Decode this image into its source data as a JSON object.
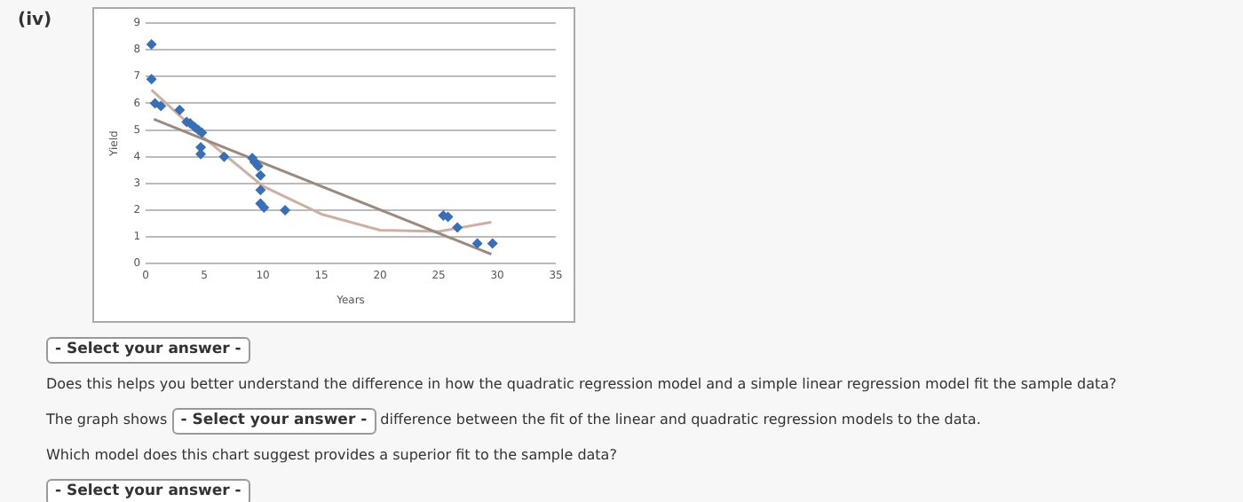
{
  "chart_data": {
    "type": "scatter",
    "xlabel": "Years",
    "ylabel": "Yield",
    "xlim": [
      0,
      35
    ],
    "xticks": [
      0,
      5,
      10,
      15,
      20,
      25,
      30,
      35
    ],
    "ylim": [
      0,
      9
    ],
    "yticks": [
      0,
      1,
      2,
      3,
      4,
      5,
      6,
      7,
      8,
      9
    ],
    "grid": "y",
    "marker": "diamond",
    "series": [
      {
        "type": "scatter",
        "color": "#3a6fb5",
        "x": [
          0.5,
          0.5,
          0.8,
          1.3,
          2.9,
          3.5,
          3.8,
          4.2,
          4.5,
          4.8,
          4.7,
          4.7,
          6.7,
          9.1,
          9.3,
          9.6,
          9.8,
          9.8,
          9.8,
          10.1,
          11.9,
          25.4,
          25.8,
          26.6,
          28.3,
          29.6
        ],
        "values": [
          8.2,
          6.9,
          6.0,
          5.9,
          5.75,
          5.3,
          5.25,
          5.1,
          5.0,
          4.9,
          4.35,
          4.1,
          4.0,
          3.95,
          3.8,
          3.65,
          3.3,
          2.75,
          2.25,
          2.1,
          2.0,
          1.8,
          1.75,
          1.35,
          0.75,
          0.75
        ]
      },
      {
        "type": "line",
        "color": "#9a8a80",
        "marker": "none",
        "x": [
          0.7,
          29.5
        ],
        "values": [
          5.4,
          0.35
        ]
      },
      {
        "type": "line",
        "color": "#cdb0a4",
        "marker": "none",
        "x": [
          0.5,
          5,
          10,
          15,
          20,
          25,
          29.5
        ],
        "values": [
          6.5,
          4.7,
          2.9,
          1.85,
          1.25,
          1.2,
          1.55
        ]
      }
    ],
    "annotations": [
      "(iv)",
      "- Select your answer -",
      "Does this helps you better understand the difference in how the quadratic regression model and a simple linear regression model fit the sample data?",
      "The graph shows",
      "- Select your answer -",
      "difference between the fit of the linear and quadratic regression models to the data.",
      "Which model does this chart suggest provides a superior fit to the sample data?",
      "- Select your answer -"
    ]
  }
}
